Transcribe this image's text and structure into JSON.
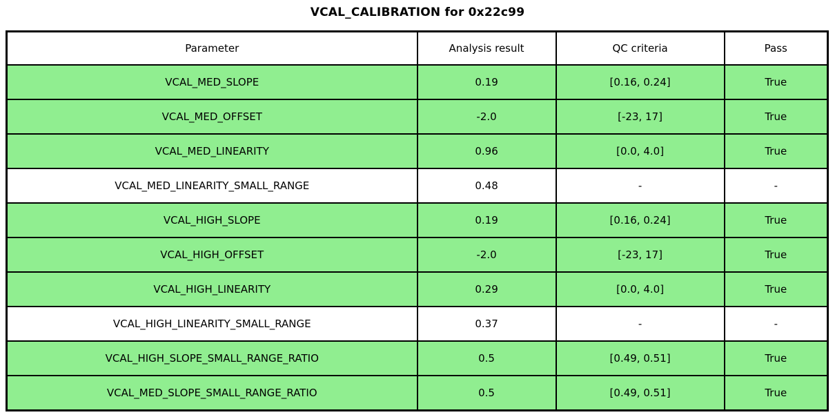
{
  "title": "VCAL_CALIBRATION for 0x22c99",
  "colors": {
    "pass_row_bg": "#90EE90",
    "neutral_row_bg": "#FFFFFF",
    "border": "#000000",
    "text": "#000000"
  },
  "table": {
    "columns": [
      {
        "label": "Parameter",
        "width_pct": 50.0
      },
      {
        "label": "Analysis result",
        "width_pct": 16.9
      },
      {
        "label": "QC criteria",
        "width_pct": 20.5
      },
      {
        "label": "Pass",
        "width_pct": 12.6
      }
    ],
    "rows": [
      {
        "parameter": "VCAL_MED_SLOPE",
        "analysis_result": "0.19",
        "qc_criteria": "[0.16, 0.24]",
        "pass": "True",
        "highlight": true
      },
      {
        "parameter": "VCAL_MED_OFFSET",
        "analysis_result": "-2.0",
        "qc_criteria": "[-23, 17]",
        "pass": "True",
        "highlight": true
      },
      {
        "parameter": "VCAL_MED_LINEARITY",
        "analysis_result": "0.96",
        "qc_criteria": "[0.0, 4.0]",
        "pass": "True",
        "highlight": true
      },
      {
        "parameter": "VCAL_MED_LINEARITY_SMALL_RANGE",
        "analysis_result": "0.48",
        "qc_criteria": "-",
        "pass": "-",
        "highlight": false
      },
      {
        "parameter": "VCAL_HIGH_SLOPE",
        "analysis_result": "0.19",
        "qc_criteria": "[0.16, 0.24]",
        "pass": "True",
        "highlight": true
      },
      {
        "parameter": "VCAL_HIGH_OFFSET",
        "analysis_result": "-2.0",
        "qc_criteria": "[-23, 17]",
        "pass": "True",
        "highlight": true
      },
      {
        "parameter": "VCAL_HIGH_LINEARITY",
        "analysis_result": "0.29",
        "qc_criteria": "[0.0, 4.0]",
        "pass": "True",
        "highlight": true
      },
      {
        "parameter": "VCAL_HIGH_LINEARITY_SMALL_RANGE",
        "analysis_result": "0.37",
        "qc_criteria": "-",
        "pass": "-",
        "highlight": false
      },
      {
        "parameter": "VCAL_HIGH_SLOPE_SMALL_RANGE_RATIO",
        "analysis_result": "0.5",
        "qc_criteria": "[0.49, 0.51]",
        "pass": "True",
        "highlight": true
      },
      {
        "parameter": "VCAL_MED_SLOPE_SMALL_RANGE_RATIO",
        "analysis_result": "0.5",
        "qc_criteria": "[0.49, 0.51]",
        "pass": "True",
        "highlight": true
      }
    ]
  }
}
